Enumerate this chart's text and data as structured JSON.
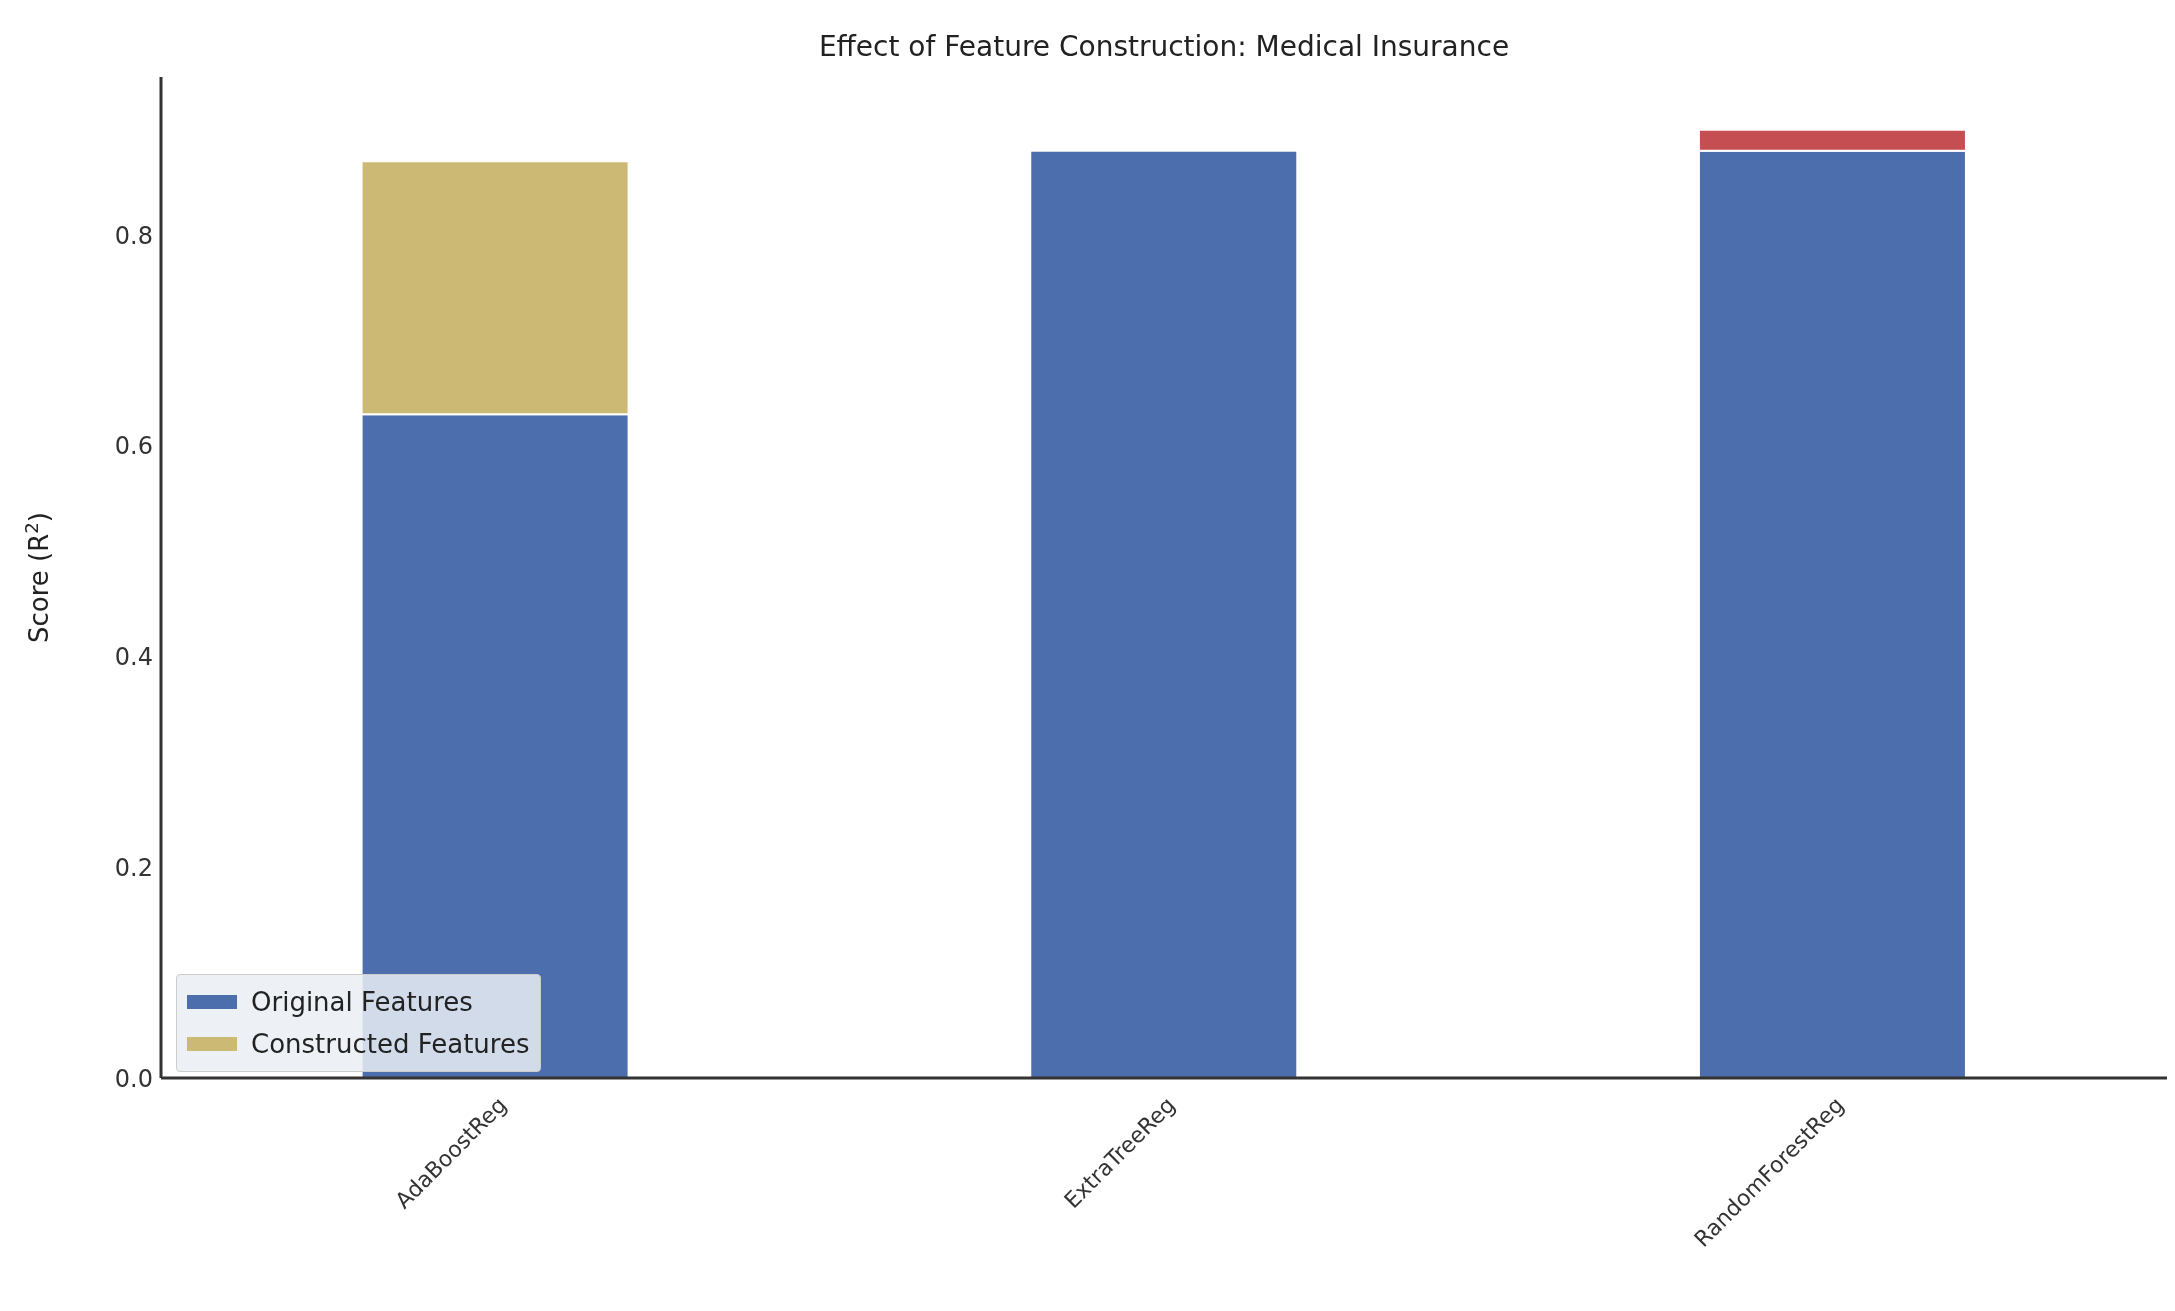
{
  "chart_data": {
    "type": "bar",
    "title": "Effect of Feature Construction: Medical Insurance",
    "ylabel": "Score (R$^{2}$)",
    "categories": [
      "AdaBoostReg",
      "ExtraTreeReg",
      "RandomForestReg"
    ],
    "stacked": true,
    "series": [
      {
        "name": "Original Features",
        "color": "#4c6ead",
        "values": [
          0.63,
          0.88,
          0.88
        ]
      },
      {
        "name": "Constructed Features",
        "color": "#ccb974",
        "colors": [
          "#ccb974",
          "#ccb974",
          "#c44e52"
        ],
        "values": [
          0.24,
          null,
          0.02
        ]
      }
    ],
    "ylim": [
      0,
      0.95
    ],
    "yticks": [
      {
        "value": 0,
        "label": "0.0"
      },
      0.2,
      0.4,
      0.6,
      0.8
    ],
    "legend": "bottom left"
  }
}
